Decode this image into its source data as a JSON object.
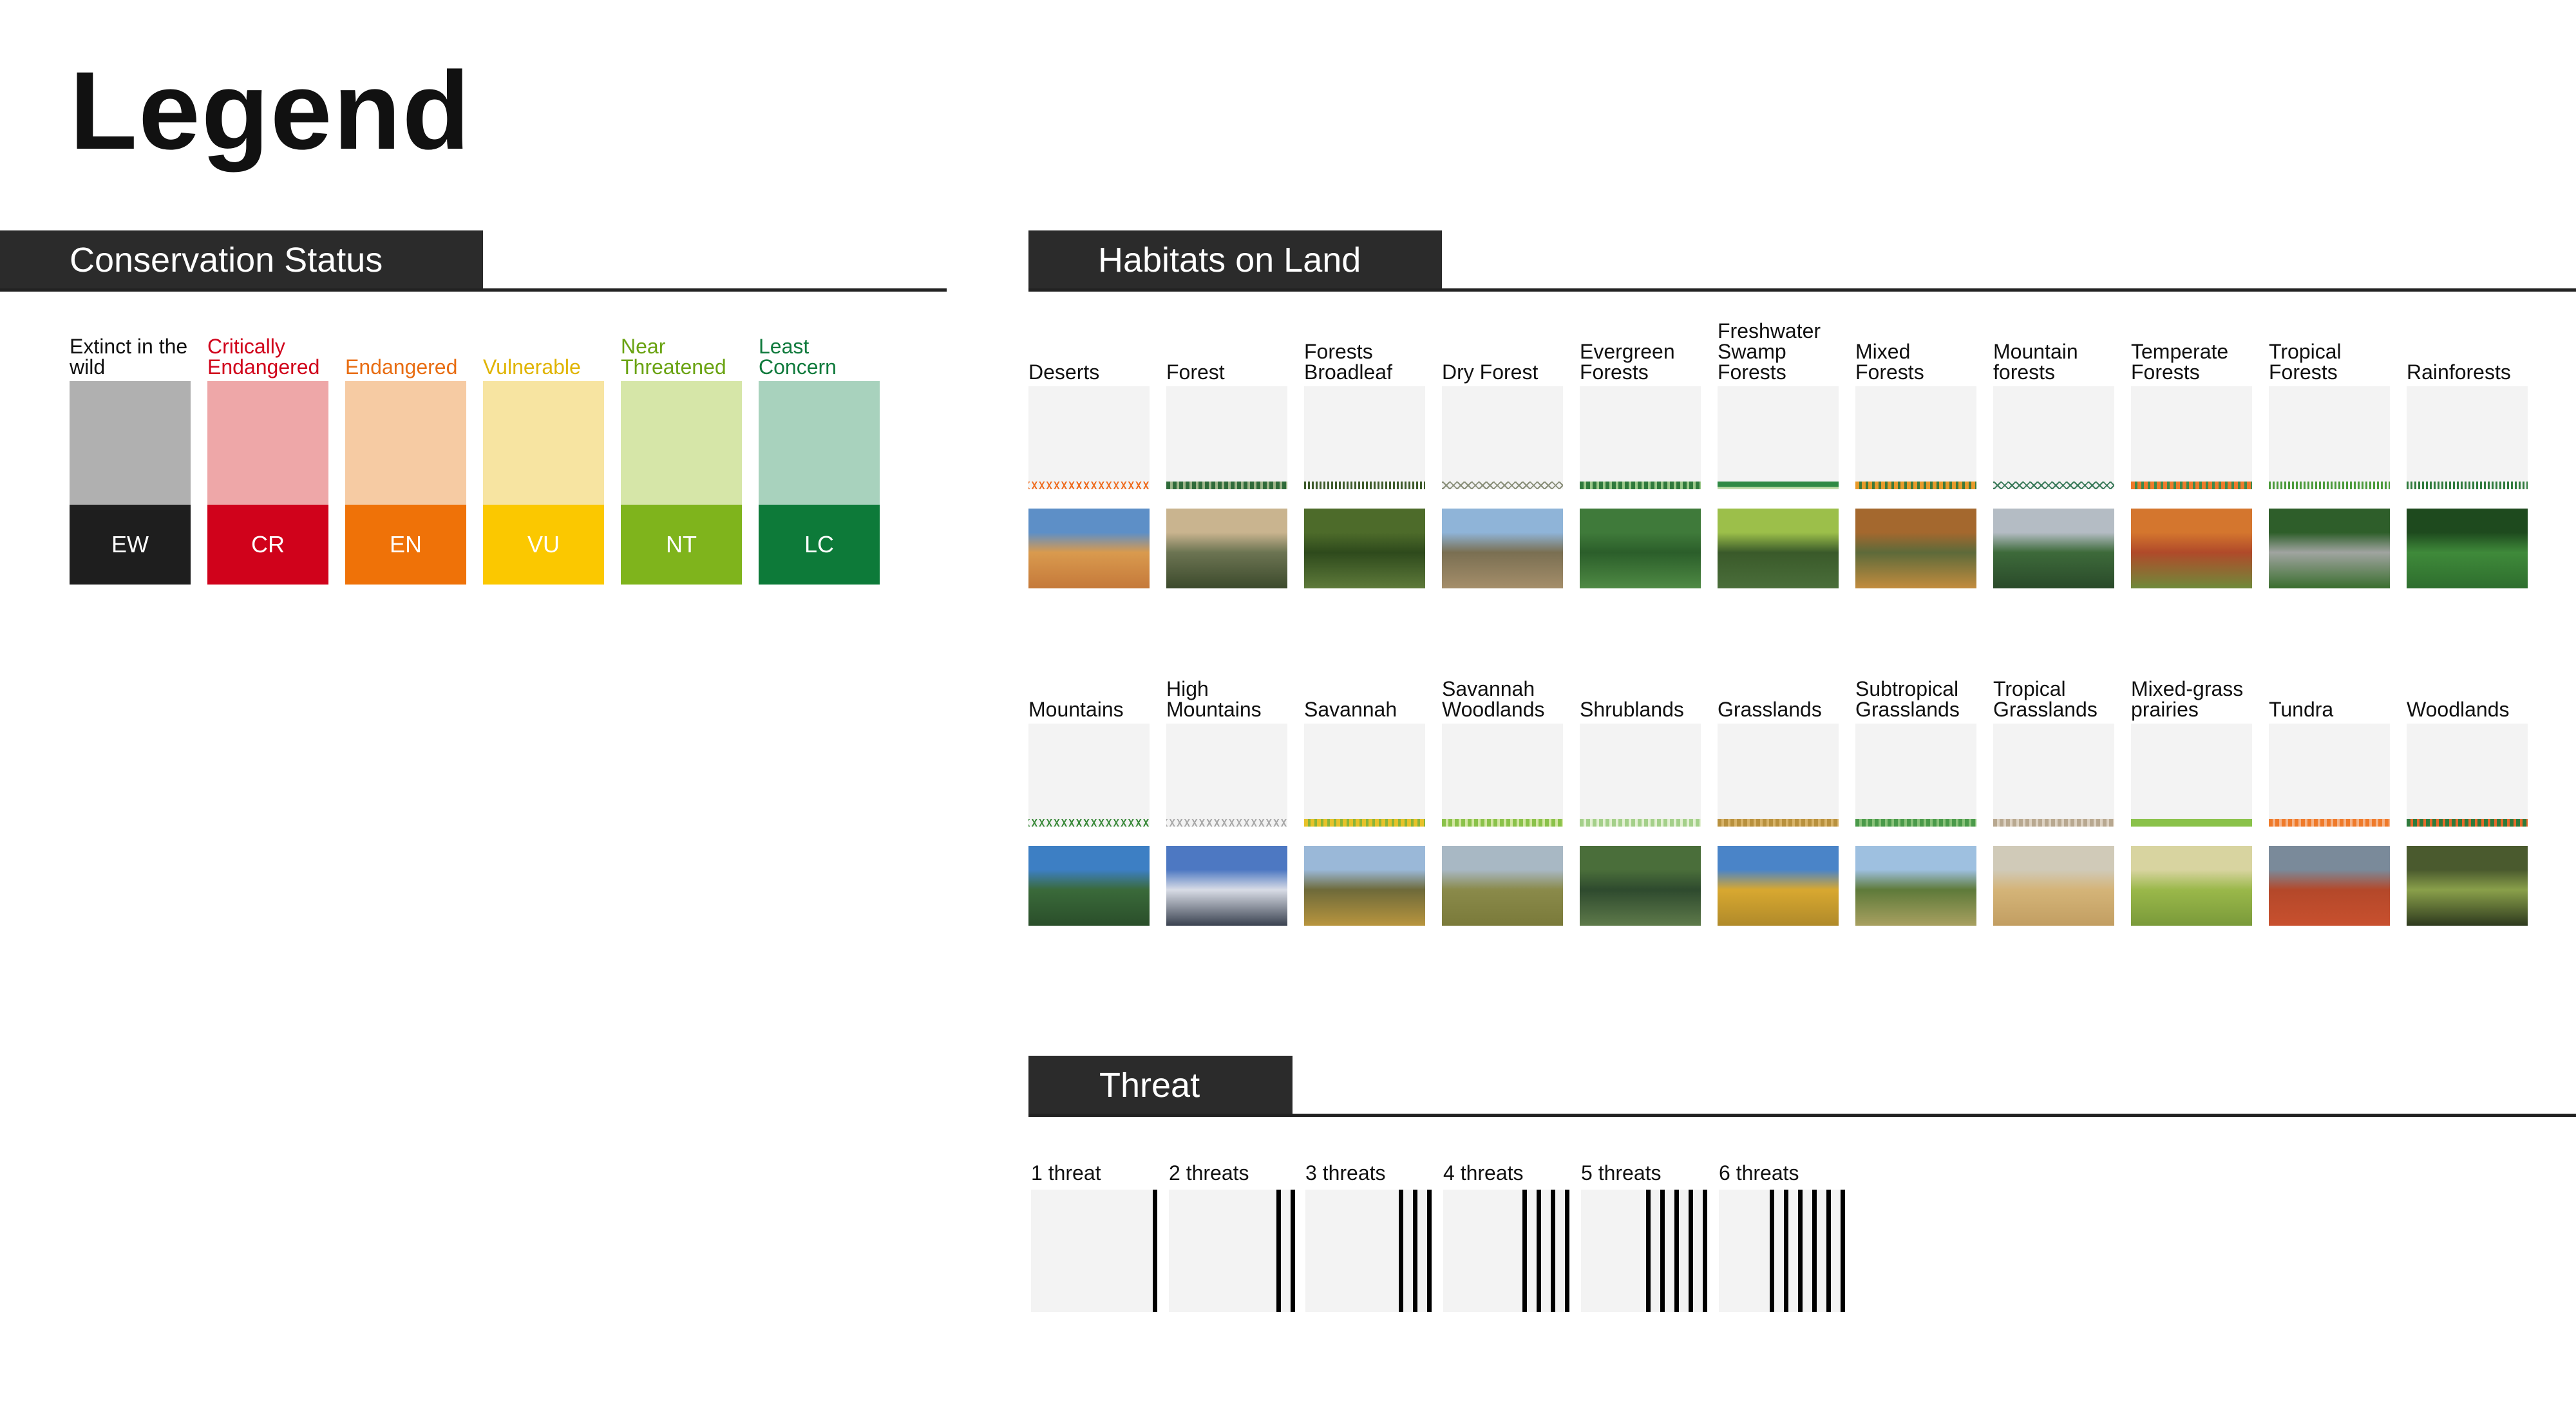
{
  "title": "Legend",
  "conservation": {
    "heading": "Conservation Status",
    "items": [
      {
        "label": "Extinct in the wild",
        "code": "EW",
        "label_color": "#111111",
        "light": "#b0b0b0",
        "dark": "#1e1e1e"
      },
      {
        "label": "Critically Endangered",
        "code": "CR",
        "label_color": "#d0021b",
        "light": "#eea7a8",
        "dark": "#d0021b"
      },
      {
        "label": "Endangered",
        "code": "EN",
        "label_color": "#e86d12",
        "light": "#f6cba3",
        "dark": "#ef7208"
      },
      {
        "label": "Vulnerable",
        "code": "VU",
        "label_color": "#e0b400",
        "light": "#f7e4a1",
        "dark": "#fbc800"
      },
      {
        "label": "Near Threatened",
        "code": "NT",
        "label_color": "#6aa312",
        "light": "#d6e6a8",
        "dark": "#7fb41c"
      },
      {
        "label": "Least Concern",
        "code": "LC",
        "label_color": "#0f7a3c",
        "light": "#a8d2bd",
        "dark": "#0d7a39"
      }
    ]
  },
  "habitats": {
    "heading": "Habitats on Land",
    "row1": [
      {
        "label": "Deserts",
        "pattern": "wave",
        "colors": [
          "#ef6c1f"
        ],
        "photo": [
          "#5d8fc7",
          "#d99a4e",
          "#c5793a"
        ]
      },
      {
        "label": "Forest",
        "pattern": "stripes",
        "colors": [
          "#2f6b3a",
          "#9fb58a"
        ],
        "photo": [
          "#c9b48f",
          "#6c7452",
          "#3c4a2c"
        ]
      },
      {
        "label": "Forests Broadleaf",
        "pattern": "comb",
        "colors": [
          "#3d5a2a"
        ],
        "photo": [
          "#4d6b2a",
          "#2e4a1c",
          "#5e7a3a"
        ]
      },
      {
        "label": "Dry Forest",
        "pattern": "zigzag",
        "colors": [
          "#8a8f7a"
        ],
        "photo": [
          "#8fb4d8",
          "#7a6f52",
          "#a58e6a"
        ]
      },
      {
        "label": "Evergreen Forests",
        "pattern": "stripes",
        "colors": [
          "#2f7a3c",
          "#9cc88a"
        ],
        "photo": [
          "#3f7a3a",
          "#2b5e2a",
          "#4f8a44"
        ]
      },
      {
        "label": "Freshwater Swamp Forests",
        "pattern": "solid",
        "colors": [
          "#2f8a44",
          "#c2dcaa"
        ],
        "photo": [
          "#9cbf4a",
          "#3a5a2a",
          "#4a6e3a"
        ]
      },
      {
        "label": "Mixed Forests",
        "pattern": "stripes",
        "colors": [
          "#e89a2a",
          "#3d7a3a"
        ],
        "photo": [
          "#a4682e",
          "#5d6a3a",
          "#c38c3e"
        ]
      },
      {
        "label": "Mountain forests",
        "pattern": "zigzag",
        "colors": [
          "#3a7a5a"
        ],
        "photo": [
          "#b4bcc4",
          "#3d6a3a",
          "#2a4a2a"
        ]
      },
      {
        "label": "Temperate Forests",
        "pattern": "stripes",
        "colors": [
          "#ef7a2a",
          "#3d8a4a"
        ],
        "photo": [
          "#d4762e",
          "#b04a2a",
          "#6f8a3a"
        ]
      },
      {
        "label": "Tropical Forests",
        "pattern": "comb",
        "colors": [
          "#4a9a3a"
        ],
        "photo": [
          "#2e5e2a",
          "#a0a4a0",
          "#3a6e2e"
        ]
      },
      {
        "label": "Rainforests",
        "pattern": "comb",
        "colors": [
          "#2f7a3c"
        ],
        "photo": [
          "#1e4a1e",
          "#3f8a3a",
          "#2e6e2e"
        ]
      }
    ],
    "row2": [
      {
        "label": "Mountains",
        "pattern": "wave",
        "colors": [
          "#3a8a3a"
        ],
        "photo": [
          "#3d7fc4",
          "#3a6a3a",
          "#2a4e2a"
        ]
      },
      {
        "label": "High Mountains",
        "pattern": "wave",
        "colors": [
          "#a8a8a8"
        ],
        "photo": [
          "#4d78c2",
          "#d8dce6",
          "#3a4250"
        ]
      },
      {
        "label": "Savannah",
        "pattern": "stripes",
        "colors": [
          "#e8c22a",
          "#8ab43a"
        ],
        "photo": [
          "#9ab8d8",
          "#6e6a3a",
          "#b8953e"
        ]
      },
      {
        "label": "Savannah Woodlands",
        "pattern": "stripes",
        "colors": [
          "#8ac24a",
          "#d4e6a4"
        ],
        "photo": [
          "#a8b8c4",
          "#8a8a4a",
          "#7a7a3a"
        ]
      },
      {
        "label": "Shrublands",
        "pattern": "stripes",
        "colors": [
          "#a4d08a",
          "#e4f0d4"
        ],
        "photo": [
          "#4a6e3a",
          "#2e4a2e",
          "#5e7a4a"
        ]
      },
      {
        "label": "Grasslands",
        "pattern": "stripes",
        "colors": [
          "#b8913e",
          "#d8b46a"
        ],
        "photo": [
          "#4a84c8",
          "#d8a830",
          "#b08a2a"
        ]
      },
      {
        "label": "Subtropical Grasslands",
        "pattern": "stripes",
        "colors": [
          "#4a9a4a",
          "#8ac27a"
        ],
        "photo": [
          "#9ec0e0",
          "#5e7a3a",
          "#a8a060"
        ]
      },
      {
        "label": "Tropical Grasslands",
        "pattern": "stripes",
        "colors": [
          "#b8a890",
          "#ddd2c2"
        ],
        "photo": [
          "#d0cab8",
          "#d4b478",
          "#c29e62"
        ]
      },
      {
        "label": "Mixed-grass prairies",
        "pattern": "solid",
        "colors": [
          "#8ac24a"
        ],
        "photo": [
          "#d8d4a0",
          "#9ab84a",
          "#7a9a3a"
        ]
      },
      {
        "label": "Tundra",
        "pattern": "stripes",
        "colors": [
          "#ef7a2a",
          "#f4b48a"
        ],
        "photo": [
          "#7a8a9a",
          "#b4482a",
          "#c8502e"
        ]
      },
      {
        "label": "Woodlands",
        "pattern": "stripes",
        "colors": [
          "#2f7a3c",
          "#e86a2a"
        ],
        "photo": [
          "#4a5a2e",
          "#8aa04a",
          "#2e3a1e"
        ]
      }
    ]
  },
  "threat": {
    "heading": "Threat",
    "items": [
      {
        "label": "1 threat",
        "count": 1
      },
      {
        "label": "2 threats",
        "count": 2
      },
      {
        "label": "3 threats",
        "count": 3
      },
      {
        "label": "4 threats",
        "count": 4
      },
      {
        "label": "5 threats",
        "count": 5
      },
      {
        "label": "6 threats",
        "count": 6
      }
    ]
  }
}
